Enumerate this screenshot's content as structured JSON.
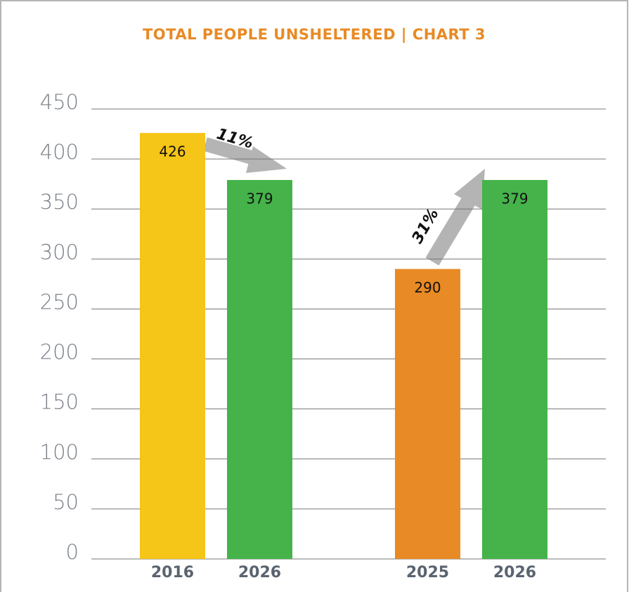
{
  "chart_data": {
    "type": "bar",
    "title": "TOTAL PEOPLE UNSHELTERED | CHART 3",
    "categories": [
      "2016",
      "2026",
      "2025",
      "2026"
    ],
    "values": [
      426,
      379,
      290,
      379
    ],
    "colors": [
      "#f5c518",
      "#45b34a",
      "#e88a25",
      "#45b34a"
    ],
    "ylim": [
      0,
      450
    ],
    "yticks": [
      0,
      50,
      100,
      150,
      200,
      250,
      300,
      350,
      400,
      450
    ],
    "grid": true,
    "annotations": [
      "11%",
      "31%"
    ]
  }
}
